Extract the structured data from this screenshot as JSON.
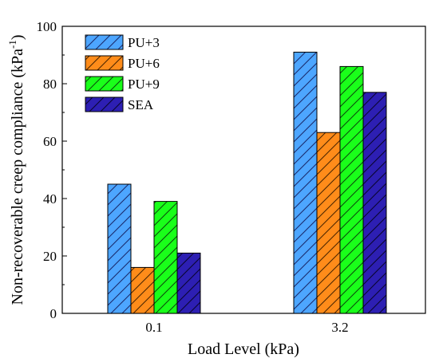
{
  "chart_data": {
    "type": "bar",
    "categories": [
      "0.1",
      "3.2"
    ],
    "series": [
      {
        "name": "PU+3",
        "values": [
          45,
          91
        ],
        "color": "#4da6ff",
        "hatch_color": "#1a2b6d"
      },
      {
        "name": "PU+6",
        "values": [
          16,
          63
        ],
        "color": "#ff8c1a",
        "hatch_color": "#4d2600"
      },
      {
        "name": "PU+9",
        "values": [
          39,
          86
        ],
        "color": "#1aff1a",
        "hatch_color": "#0a4d0a"
      },
      {
        "name": "SEA",
        "values": [
          21,
          77
        ],
        "color": "#2d1fb3",
        "hatch_color": "#0a0530"
      }
    ],
    "xlabel": "Load Level (kPa)",
    "ylabel": "Non-recoverable creep compliance (kPa",
    "ylabel_superscript": "-1",
    "ylabel_suffix": ")",
    "ylim": [
      0,
      100
    ],
    "yticks": [
      0,
      20,
      40,
      60,
      80,
      100
    ],
    "legend_position": "top-left",
    "pattern": "diagonal-hatch",
    "grid": false
  }
}
